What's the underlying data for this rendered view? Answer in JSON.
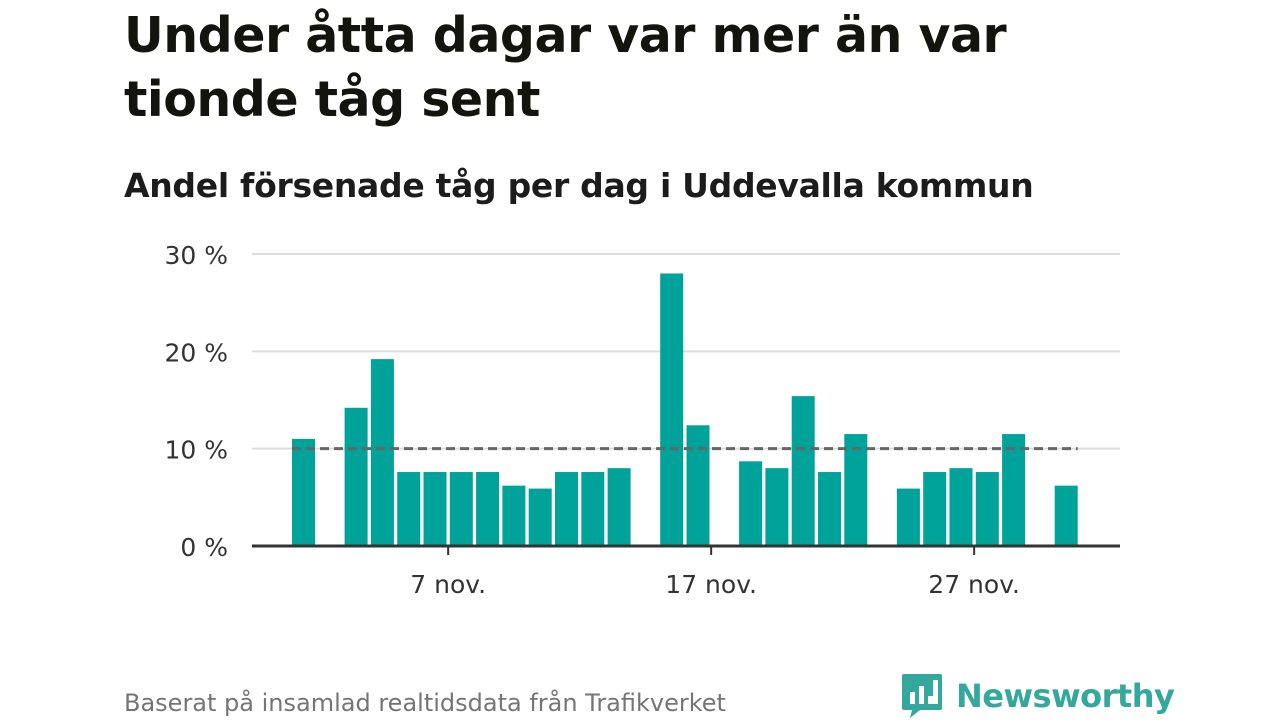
{
  "title": "Under åtta dagar var mer än var tionde tåg sent",
  "subtitle": "Andel försenade tåg per dag i Uddevalla kommun",
  "footer": {
    "source": "Baserat på insamlad realtidsdata från Trafikverket",
    "brand": "Newsworthy"
  },
  "colors": {
    "bar": "#00a39a",
    "grid": "#dcdcdc",
    "axis": "#333333",
    "reference_line": "#666666",
    "brand": "#34a89c"
  },
  "icons": {
    "brand_logo": "newsworthy-bar-chart-bubble-icon"
  },
  "chart_data": {
    "type": "bar",
    "title": "Andel försenade tåg per dag i Uddevalla kommun",
    "xlabel": "",
    "ylabel": "",
    "x": [
      "1 nov.",
      "2 nov.",
      "3 nov.",
      "4 nov.",
      "5 nov.",
      "6 nov.",
      "7 nov.",
      "8 nov.",
      "9 nov.",
      "10 nov.",
      "11 nov.",
      "12 nov.",
      "13 nov.",
      "14 nov.",
      "15 nov.",
      "16 nov.",
      "17 nov.",
      "18 nov.",
      "19 nov.",
      "20 nov.",
      "21 nov.",
      "22 nov.",
      "23 nov.",
      "24 nov.",
      "25 nov.",
      "26 nov.",
      "27 nov.",
      "28 nov.",
      "29 nov.",
      "30 nov."
    ],
    "values": [
      11.0,
      null,
      14.2,
      19.2,
      7.6,
      7.6,
      7.6,
      7.6,
      6.2,
      5.9,
      7.6,
      7.6,
      8.0,
      null,
      28.0,
      12.4,
      null,
      8.7,
      8.0,
      15.4,
      7.6,
      11.5,
      null,
      5.9,
      7.6,
      8.0,
      7.6,
      11.5,
      null,
      6.2
    ],
    "ylim": [
      0,
      30
    ],
    "yticks": [
      0,
      10,
      20,
      30
    ],
    "ytick_labels": [
      "0 %",
      "10 %",
      "20 %",
      "30 %"
    ],
    "xticks": [
      "7 nov.",
      "17 nov.",
      "27 nov."
    ],
    "reference_line": 10,
    "grid": true,
    "legend": "none"
  }
}
